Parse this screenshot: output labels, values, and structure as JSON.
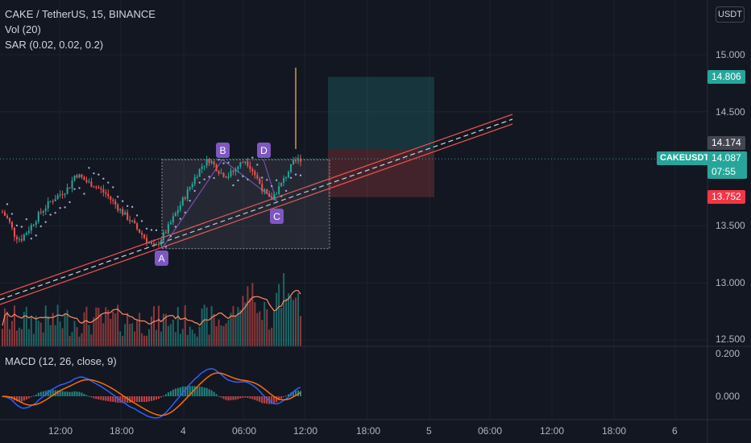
{
  "header": {
    "title": "CAKE / TetherUS, 15, BINANCE",
    "vol": "Vol (20)",
    "sar": "SAR (0.02, 0.02, 0.2)",
    "macd": "MACD (12, 26, close, 9)",
    "currency_button": "USDT"
  },
  "price_axis": {
    "ticks": [
      "15.000",
      "14.500",
      "13.500",
      "13.000",
      "12.500"
    ],
    "target_label": "14.806",
    "level_label": "14.174",
    "stop_label": "13.752",
    "symbol_label": "CAKEUSDT",
    "current_price": "14.087",
    "countdown": "07:55"
  },
  "macd_axis": {
    "ticks": [
      "0.200",
      "0.000"
    ]
  },
  "time_axis": {
    "ticks": [
      "12:00",
      "18:00",
      "4",
      "06:00",
      "12:00",
      "18:00",
      "5",
      "06:00",
      "12:00",
      "18:00",
      "6"
    ]
  },
  "pattern_points": [
    "A",
    "B",
    "C",
    "D"
  ],
  "colors": {
    "up": "#26a69a",
    "down": "#ef5350",
    "pattern": "#7e57c2",
    "macd": "#2962ff",
    "signal": "#ff6d00",
    "volume_ma": "#ff8a65"
  },
  "chart_data": {
    "type": "candlestick",
    "y_range": [
      12.45,
      15.35
    ],
    "price_ticks": [
      15.0,
      14.5,
      13.5,
      13.0,
      12.5
    ],
    "current_price": 14.087,
    "position": {
      "target": 14.806,
      "entry": 14.174,
      "stop": 13.752
    },
    "pattern": {
      "A": 13.3,
      "B": 14.08,
      "C": 13.72,
      "D": 14.08
    },
    "price_path": [
      13.62,
      13.55,
      13.42,
      13.38,
      13.45,
      13.52,
      13.6,
      13.66,
      13.72,
      13.76,
      13.8,
      13.84,
      13.96,
      13.92,
      13.88,
      13.86,
      13.82,
      13.78,
      13.72,
      13.66,
      13.6,
      13.55,
      13.48,
      13.42,
      13.36,
      13.3,
      13.38,
      13.46,
      13.56,
      13.66,
      13.76,
      13.86,
      13.96,
      14.04,
      14.08,
      14.02,
      13.96,
      13.94,
      13.98,
      14.04,
      14.08,
      14.0,
      13.9,
      13.8,
      13.72,
      13.8,
      13.88,
      13.98,
      14.06,
      14.09
    ],
    "macd_ticks": [
      0.2,
      0.0
    ]
  }
}
